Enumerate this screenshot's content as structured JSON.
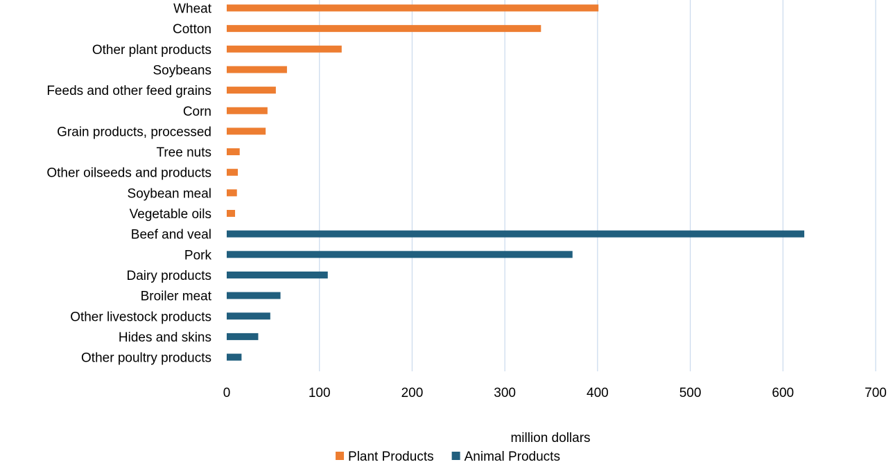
{
  "chart_data": {
    "type": "bar",
    "orientation": "horizontal",
    "title": "",
    "xlabel": "million dollars",
    "ylabel": "",
    "xlim": [
      0,
      700
    ],
    "x_ticks": [
      0,
      100,
      200,
      300,
      400,
      500,
      600,
      700
    ],
    "grid": "vertical major gridlines",
    "legend_position": "bottom",
    "categories": [
      "Wheat",
      "Cotton",
      "Other plant products",
      "Soybeans",
      "Feeds and other feed grains",
      "Corn",
      "Grain products, processed",
      "Tree nuts",
      "Other oilseeds and products",
      "Soybean meal",
      "Vegetable oils",
      "Beef and veal",
      "Pork",
      "Dairy products",
      "Broiler meat",
      "Other livestock products",
      "Hides and skins",
      "Other poultry products"
    ],
    "series": [
      {
        "name": "Plant Products",
        "color": "#ED7D31",
        "values": [
          401,
          339,
          124,
          65,
          53,
          44,
          42,
          14,
          12,
          11,
          9,
          null,
          null,
          null,
          null,
          null,
          null,
          null
        ]
      },
      {
        "name": "Animal Products",
        "color": "#215F7E",
        "values": [
          null,
          null,
          null,
          null,
          null,
          null,
          null,
          null,
          null,
          null,
          null,
          623,
          373,
          109,
          58,
          47,
          34,
          16
        ]
      }
    ]
  }
}
